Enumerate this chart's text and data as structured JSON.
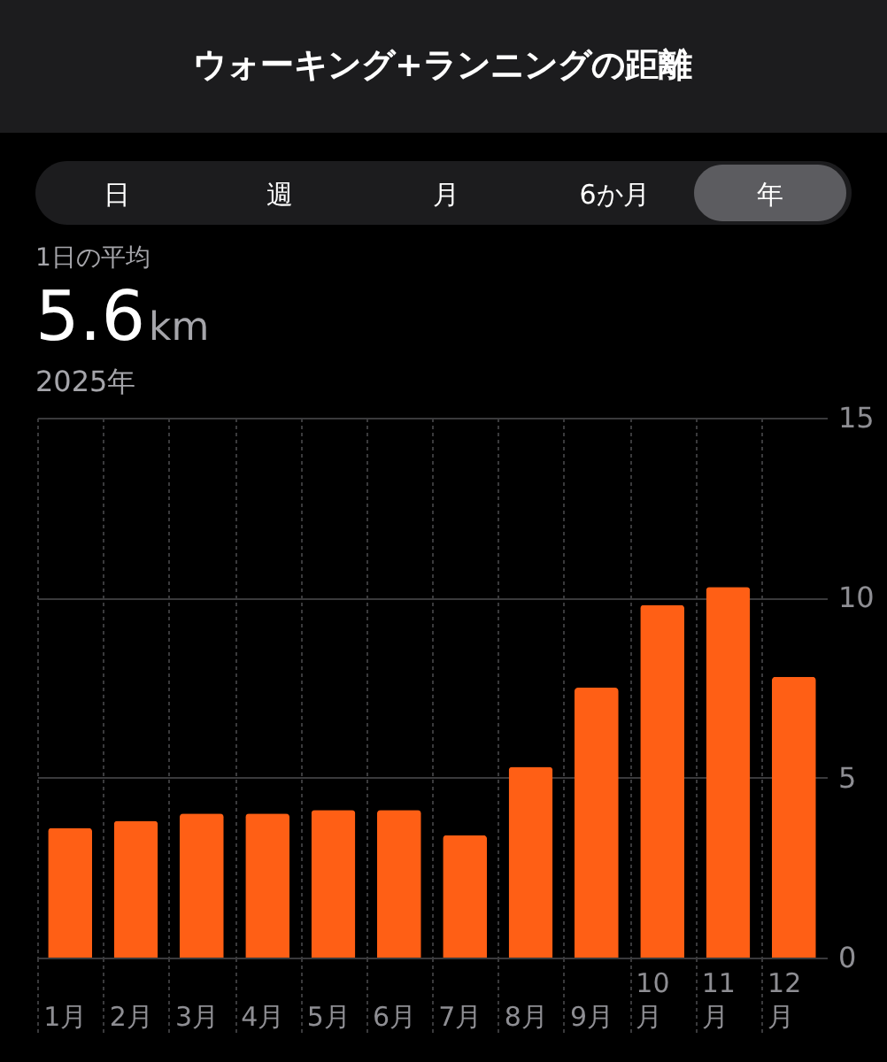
{
  "chart_data": {
    "type": "bar",
    "title": "ウォーキング+ランニングの距離",
    "annotations": [
      "日",
      "週",
      "月",
      "6か月",
      "年",
      "1日の平均",
      "5.6km",
      "2025年"
    ],
    "categories": [
      "1月",
      "2月",
      "3月",
      "4月",
      "5月",
      "6月",
      "7月",
      "8月",
      "9月",
      "10月",
      "11月",
      "12月"
    ],
    "values": [
      3.6,
      3.8,
      4.0,
      4.0,
      4.1,
      4.1,
      3.4,
      5.3,
      7.5,
      9.8,
      10.3,
      7.8
    ],
    "color": "#ff5f15",
    "ylim": [
      0,
      15
    ],
    "yticks": [
      0,
      5,
      10,
      15
    ],
    "grid": true
  }
}
